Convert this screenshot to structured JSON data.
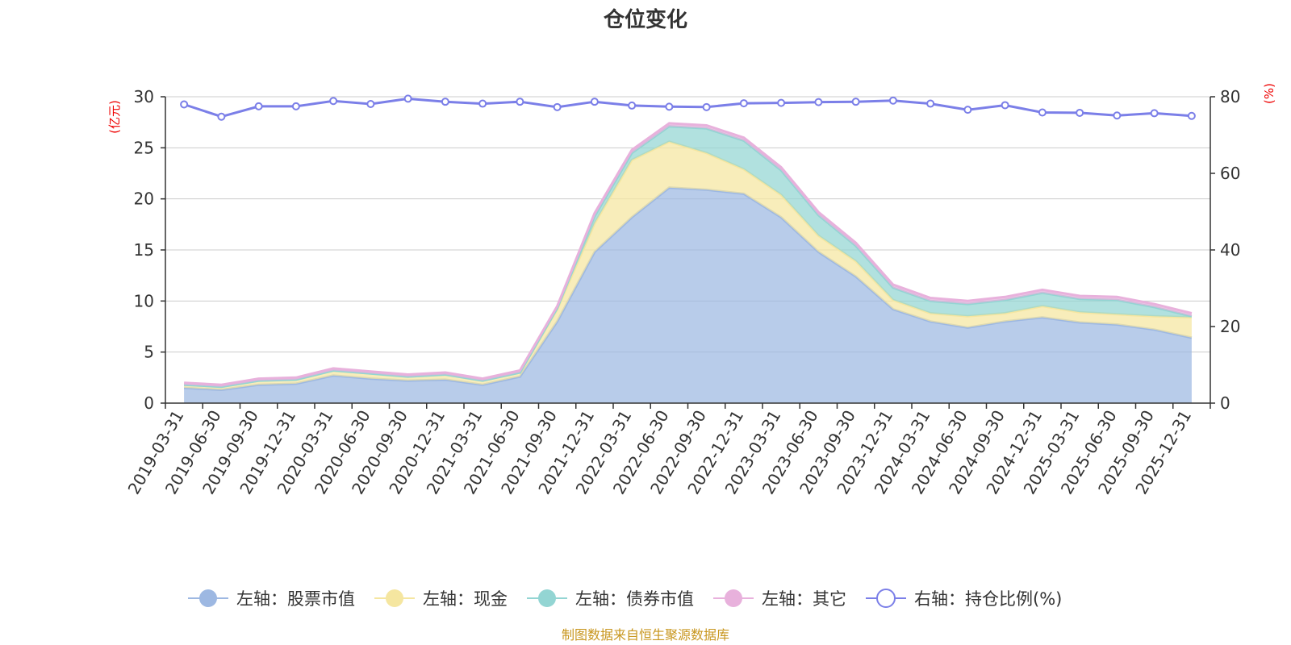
{
  "chart_data": {
    "type": "area",
    "title": "仓位变化",
    "left_axis_unit": "(亿元)",
    "right_axis_unit": "(%)",
    "left_ylim": [
      0,
      30
    ],
    "left_yticks": [
      0,
      5,
      10,
      15,
      20,
      25,
      30
    ],
    "right_ylim": [
      0,
      80
    ],
    "right_yticks": [
      0,
      20,
      40,
      60,
      80
    ],
    "stacked": true,
    "grid": true,
    "legend_position": "bottom",
    "x": [
      "2019-03-31",
      "2019-06-30",
      "2019-09-30",
      "2019-12-31",
      "2020-03-31",
      "2020-06-30",
      "2020-09-30",
      "2020-12-31",
      "2021-03-31",
      "2021-06-30",
      "2021-09-30",
      "2021-12-31",
      "2022-03-31",
      "2022-06-30",
      "2022-09-30",
      "2022-12-31",
      "2023-03-31",
      "2023-06-30",
      "2023-09-30",
      "2023-12-31",
      "2024-03-31",
      "2024-06-30",
      "2024-09-30",
      "2024-12-31",
      "2025-03-31",
      "2025-06-30",
      "2025-09-30",
      "2025-12-31"
    ],
    "series": [
      {
        "name": "左轴：股票市值",
        "axis": "left",
        "color": "#9db8e2",
        "values": [
          1.5,
          1.3,
          1.8,
          1.9,
          2.7,
          2.4,
          2.2,
          2.3,
          1.8,
          2.6,
          8.0,
          14.8,
          18.2,
          21.1,
          20.9,
          20.5,
          18.2,
          14.8,
          12.4,
          9.2,
          8.0,
          7.4,
          8.0,
          8.4,
          7.9,
          7.7,
          7.2,
          6.4
        ]
      },
      {
        "name": "左轴：现金",
        "axis": "left",
        "color": "#f5e6a0",
        "values": [
          0.3,
          0.3,
          0.4,
          0.4,
          0.5,
          0.5,
          0.4,
          0.5,
          0.4,
          0.4,
          1.2,
          2.8,
          5.6,
          4.5,
          3.6,
          2.4,
          2.2,
          1.6,
          1.5,
          0.9,
          0.8,
          1.1,
          0.8,
          1.1,
          1.0,
          1.0,
          1.3,
          2.0
        ]
      },
      {
        "name": "左轴：债券市值",
        "axis": "left",
        "color": "#93d5d3",
        "values": [
          0,
          0,
          0,
          0,
          0,
          0,
          0,
          0,
          0,
          0,
          0.1,
          0.7,
          0.7,
          1.5,
          2.4,
          2.8,
          2.4,
          2.0,
          1.5,
          1.2,
          1.2,
          1.2,
          1.3,
          1.3,
          1.3,
          1.4,
          0.9,
          0.1
        ]
      },
      {
        "name": "左轴：其它",
        "axis": "left",
        "color": "#e8b1dc",
        "values": [
          0.2,
          0.2,
          0.2,
          0.2,
          0.2,
          0.2,
          0.2,
          0.2,
          0.2,
          0.2,
          0.2,
          0.3,
          0.3,
          0.3,
          0.3,
          0.3,
          0.3,
          0.3,
          0.3,
          0.3,
          0.3,
          0.3,
          0.3,
          0.3,
          0.3,
          0.3,
          0.3,
          0.3
        ]
      },
      {
        "name": "右轴：持仓比例(%)",
        "axis": "right",
        "type": "line",
        "color": "#7b7fe8",
        "values": [
          78.0,
          74.8,
          77.5,
          77.5,
          78.9,
          78.1,
          79.5,
          78.7,
          78.2,
          78.7,
          77.3,
          78.7,
          77.7,
          77.4,
          77.3,
          78.3,
          78.4,
          78.6,
          78.7,
          79.0,
          78.2,
          76.6,
          77.8,
          75.9,
          75.8,
          75.1,
          75.7,
          75.0
        ]
      }
    ]
  },
  "source_note": "制图数据来自恒生聚源数据库"
}
